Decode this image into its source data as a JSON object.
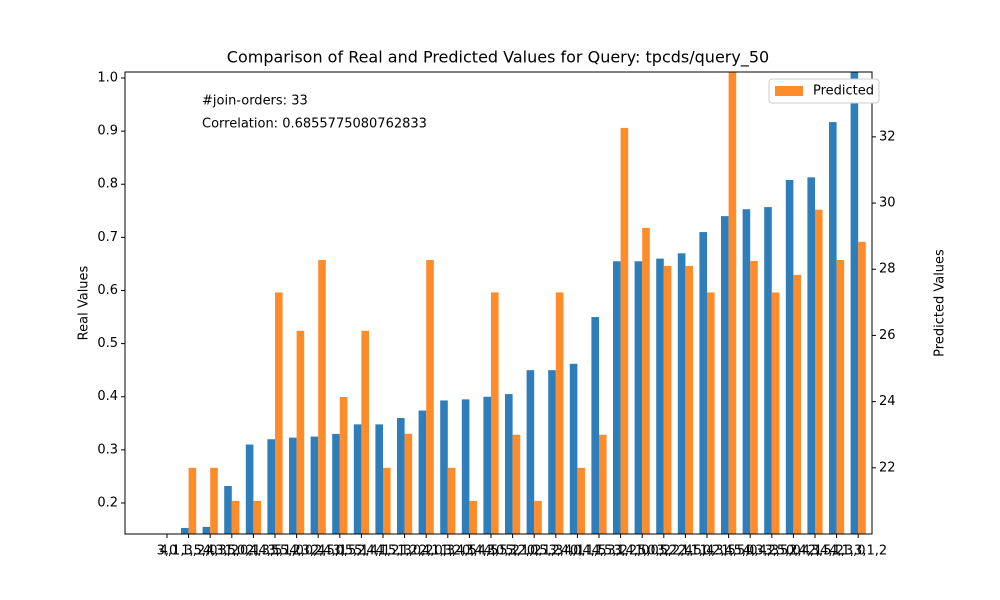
{
  "chart_data": {
    "type": "bar",
    "title": "Comparison of Real and Predicted Values for Query: tpcds/query_50",
    "annotations": [
      "#join-orders: 33",
      "Correlation: 0.6855775080762833"
    ],
    "ylabel": "Real Values",
    "y2label": "Predicted Values",
    "categories": [
      "3,0",
      "4,1,3,2,0",
      "1,5,4,3,2",
      "4,3,5,0,1",
      "1,0,4,3,5",
      "2,4,5,1,0",
      "3,5,2,0,4",
      "4,3,2,5,1",
      "2,4,0,5,1",
      "3,5,2,4,1",
      "5,4,1,2,3",
      "4,5,1,0,2",
      "1,2,4,0,3",
      "2,1,3,4,5",
      "1,2,3,4,5",
      "0,4,3,5,2",
      "4,0,3,1,2",
      "5,2,0,1,3",
      "0,5,2,4,1",
      "3,4,0,1,5",
      "0,4,1,3,2",
      "4,5,1,2,0",
      "3,4,5,0,2",
      "1,0,5,2,4",
      "3,2,1,5,4",
      "2,1,0,3,5",
      "1,2,4,5,0",
      "1,5,0,4,3",
      "4,3,2,5,0",
      "3,5,2,4,1",
      "0,4,3,5,2",
      "2,4,1,3,0",
      "4,1,3,1,2"
    ],
    "series": [
      {
        "color": "#2e7ebc",
        "axis": "y",
        "values": [
          0.14,
          0.153,
          0.155,
          0.232,
          0.31,
          0.32,
          0.323,
          0.325,
          0.33,
          0.348,
          0.348,
          0.36,
          0.374,
          0.393,
          0.395,
          0.4,
          0.405,
          0.45,
          0.45,
          0.462,
          0.55,
          0.655,
          0.655,
          0.66,
          0.67,
          0.71,
          0.74,
          0.753,
          0.757,
          0.808,
          0.813,
          0.917,
          1.02
        ]
      },
      {
        "name": "Predicted",
        "color": "#ff8c2a",
        "axis": "y2",
        "values": [
          20.0,
          22.0,
          22.0,
          21.0,
          21.0,
          27.3,
          26.14,
          28.28,
          24.14,
          26.14,
          22.0,
          23.03,
          28.28,
          22.0,
          21.0,
          27.3,
          23.0,
          21.0,
          27.3,
          22.0,
          23.0,
          32.27,
          29.25,
          28.1,
          28.1,
          27.3,
          34.5,
          28.25,
          27.3,
          27.83,
          29.8,
          28.28,
          28.83
        ]
      }
    ],
    "ylim": [
      0.1416,
      1.0113
    ],
    "yticks": [
      {
        "value": 0.2,
        "label": "0.2"
      },
      {
        "value": 0.3,
        "label": "0.3"
      },
      {
        "value": 0.4,
        "label": "0.4"
      },
      {
        "value": 0.5,
        "label": "0.5"
      },
      {
        "value": 0.6,
        "label": "0.6"
      },
      {
        "value": 0.7,
        "label": "0.7"
      },
      {
        "value": 0.8,
        "label": "0.8"
      },
      {
        "value": 0.9,
        "label": "0.9"
      },
      {
        "value": 1.0,
        "label": "1.0"
      }
    ],
    "y2lim": [
      20.0,
      33.96
    ],
    "y2ticks": [
      22,
      24,
      26,
      28,
      30,
      32
    ],
    "legend": "upper right"
  }
}
